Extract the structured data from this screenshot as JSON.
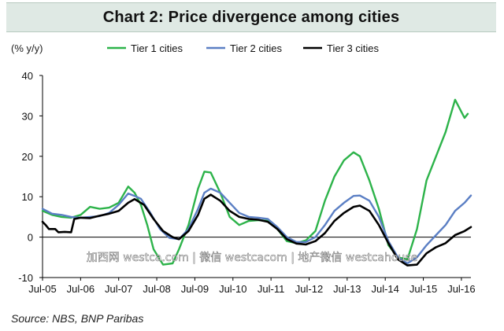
{
  "title": "Chart 2: Price divergence among cities",
  "source": "Source: NBS, BNP Paribas",
  "watermark": "加西网 westca.com | 微信 westcacom | 地产微信 westcahouse",
  "colors": {
    "tier1": "#2db34a",
    "tier2": "#5b7fc4",
    "tier3": "#000000",
    "title_bg": "#dfe9e4"
  },
  "chart_data": {
    "type": "line",
    "ylabel": "(% y/y)",
    "xlabel": "",
    "ylim": [
      -10,
      40
    ],
    "yticks": [
      -10,
      0,
      10,
      20,
      30,
      40
    ],
    "xlim": [
      "2005-07",
      "2016-10"
    ],
    "xticks": [
      {
        "date": "2005-07",
        "label": "Jul-05"
      },
      {
        "date": "2006-07",
        "label": "Jul-06"
      },
      {
        "date": "2007-07",
        "label": "Jul-07"
      },
      {
        "date": "2008-07",
        "label": "Jul-08"
      },
      {
        "date": "2009-07",
        "label": "Jul-09"
      },
      {
        "date": "2010-07",
        "label": "Jul-10"
      },
      {
        "date": "2011-07",
        "label": "Jul-11"
      },
      {
        "date": "2012-07",
        "label": "Jul-12"
      },
      {
        "date": "2013-07",
        "label": "Jul-13"
      },
      {
        "date": "2014-07",
        "label": "Jul-14"
      },
      {
        "date": "2015-07",
        "label": "Jul-15"
      },
      {
        "date": "2016-07",
        "label": "Jul-16"
      }
    ],
    "grid": false,
    "legend_position": "top",
    "series": [
      {
        "name": "Tier 1 cities",
        "color": "#2db34a",
        "points": [
          [
            "2005-07",
            6.5
          ],
          [
            "2005-10",
            5.5
          ],
          [
            "2006-01",
            5.0
          ],
          [
            "2006-04",
            4.8
          ],
          [
            "2006-07",
            5.5
          ],
          [
            "2006-10",
            7.5
          ],
          [
            "2007-01",
            7.0
          ],
          [
            "2007-04",
            7.3
          ],
          [
            "2007-07",
            8.5
          ],
          [
            "2007-10",
            12.5
          ],
          [
            "2007-12",
            11.0
          ],
          [
            "2008-02",
            8.0
          ],
          [
            "2008-04",
            3.0
          ],
          [
            "2008-06",
            -3.0
          ],
          [
            "2008-09",
            -6.8
          ],
          [
            "2008-12",
            -6.5
          ],
          [
            "2009-02",
            -3.0
          ],
          [
            "2009-05",
            3.0
          ],
          [
            "2009-08",
            12.0
          ],
          [
            "2009-10",
            16.2
          ],
          [
            "2009-12",
            16.0
          ],
          [
            "2010-03",
            11.0
          ],
          [
            "2010-06",
            5.0
          ],
          [
            "2010-09",
            3.0
          ],
          [
            "2010-12",
            4.0
          ],
          [
            "2011-03",
            4.2
          ],
          [
            "2011-06",
            4.0
          ],
          [
            "2011-09",
            2.0
          ],
          [
            "2011-12",
            -1.0
          ],
          [
            "2012-03",
            -1.5
          ],
          [
            "2012-06",
            -0.8
          ],
          [
            "2012-09",
            1.5
          ],
          [
            "2012-12",
            9.0
          ],
          [
            "2013-03",
            15.0
          ],
          [
            "2013-06",
            19.0
          ],
          [
            "2013-09",
            21.0
          ],
          [
            "2013-11",
            20.0
          ],
          [
            "2014-02",
            14.0
          ],
          [
            "2014-05",
            7.0
          ],
          [
            "2014-08",
            -2.0
          ],
          [
            "2014-11",
            -5.0
          ],
          [
            "2015-02",
            -5.5
          ],
          [
            "2015-05",
            2.0
          ],
          [
            "2015-08",
            14.0
          ],
          [
            "2015-11",
            20.0
          ],
          [
            "2016-02",
            26.0
          ],
          [
            "2016-05",
            34.0
          ],
          [
            "2016-07",
            31.0
          ],
          [
            "2016-08",
            29.5
          ],
          [
            "2016-09",
            30.5
          ]
        ]
      },
      {
        "name": "Tier 2 cities",
        "color": "#5b7fc4",
        "points": [
          [
            "2005-07",
            7.0
          ],
          [
            "2005-10",
            5.8
          ],
          [
            "2006-01",
            5.5
          ],
          [
            "2006-04",
            5.0
          ],
          [
            "2006-07",
            4.8
          ],
          [
            "2006-10",
            5.0
          ],
          [
            "2007-01",
            5.2
          ],
          [
            "2007-04",
            6.0
          ],
          [
            "2007-07",
            8.0
          ],
          [
            "2007-10",
            10.8
          ],
          [
            "2007-12",
            10.2
          ],
          [
            "2008-02",
            9.5
          ],
          [
            "2008-05",
            6.0
          ],
          [
            "2008-08",
            2.0
          ],
          [
            "2008-11",
            -0.2
          ],
          [
            "2009-02",
            -0.5
          ],
          [
            "2009-05",
            2.0
          ],
          [
            "2009-08",
            7.0
          ],
          [
            "2009-10",
            11.0
          ],
          [
            "2009-12",
            12.0
          ],
          [
            "2010-03",
            11.0
          ],
          [
            "2010-06",
            8.5
          ],
          [
            "2010-09",
            6.0
          ],
          [
            "2010-12",
            5.0
          ],
          [
            "2011-03",
            4.8
          ],
          [
            "2011-06",
            4.5
          ],
          [
            "2011-09",
            2.5
          ],
          [
            "2011-12",
            0.0
          ],
          [
            "2012-03",
            -1.2
          ],
          [
            "2012-06",
            -1.2
          ],
          [
            "2012-09",
            0.0
          ],
          [
            "2012-12",
            3.0
          ],
          [
            "2013-03",
            6.5
          ],
          [
            "2013-06",
            8.5
          ],
          [
            "2013-09",
            10.2
          ],
          [
            "2013-11",
            10.3
          ],
          [
            "2014-02",
            9.0
          ],
          [
            "2014-05",
            5.0
          ],
          [
            "2014-08",
            -1.0
          ],
          [
            "2014-11",
            -5.0
          ],
          [
            "2015-02",
            -6.5
          ],
          [
            "2015-05",
            -5.0
          ],
          [
            "2015-08",
            -2.0
          ],
          [
            "2015-11",
            0.5
          ],
          [
            "2016-02",
            3.0
          ],
          [
            "2016-05",
            6.5
          ],
          [
            "2016-08",
            8.5
          ],
          [
            "2016-10",
            10.3
          ]
        ]
      },
      {
        "name": "Tier 3 cities",
        "color": "#000000",
        "points": [
          [
            "2005-07",
            3.8
          ],
          [
            "2005-08",
            3.0
          ],
          [
            "2005-09",
            2.0
          ],
          [
            "2005-11",
            2.0
          ],
          [
            "2005-12",
            1.2
          ],
          [
            "2006-02",
            1.3
          ],
          [
            "2006-04",
            1.2
          ],
          [
            "2006-05",
            4.5
          ],
          [
            "2006-07",
            4.8
          ],
          [
            "2006-10",
            4.7
          ],
          [
            "2007-01",
            5.3
          ],
          [
            "2007-04",
            5.8
          ],
          [
            "2007-07",
            6.5
          ],
          [
            "2007-10",
            8.5
          ],
          [
            "2007-12",
            9.4
          ],
          [
            "2008-03",
            8.0
          ],
          [
            "2008-06",
            4.5
          ],
          [
            "2008-09",
            1.5
          ],
          [
            "2008-12",
            0.0
          ],
          [
            "2009-02",
            -0.5
          ],
          [
            "2009-05",
            1.5
          ],
          [
            "2009-08",
            5.5
          ],
          [
            "2009-10",
            9.5
          ],
          [
            "2009-12",
            10.5
          ],
          [
            "2010-03",
            9.0
          ],
          [
            "2010-06",
            6.5
          ],
          [
            "2010-09",
            5.0
          ],
          [
            "2010-12",
            4.5
          ],
          [
            "2011-03",
            4.3
          ],
          [
            "2011-06",
            3.8
          ],
          [
            "2011-09",
            2.0
          ],
          [
            "2011-12",
            -0.5
          ],
          [
            "2012-03",
            -1.6
          ],
          [
            "2012-06",
            -1.8
          ],
          [
            "2012-09",
            -1.0
          ],
          [
            "2012-12",
            1.0
          ],
          [
            "2013-03",
            4.0
          ],
          [
            "2013-06",
            6.0
          ],
          [
            "2013-09",
            7.5
          ],
          [
            "2013-11",
            7.8
          ],
          [
            "2014-02",
            6.5
          ],
          [
            "2014-05",
            3.0
          ],
          [
            "2014-08",
            -1.5
          ],
          [
            "2014-11",
            -5.5
          ],
          [
            "2015-02",
            -7.0
          ],
          [
            "2015-05",
            -6.8
          ],
          [
            "2015-08",
            -4.0
          ],
          [
            "2015-11",
            -2.5
          ],
          [
            "2016-02",
            -1.5
          ],
          [
            "2016-05",
            0.5
          ],
          [
            "2016-08",
            1.5
          ],
          [
            "2016-10",
            2.5
          ]
        ]
      }
    ]
  }
}
